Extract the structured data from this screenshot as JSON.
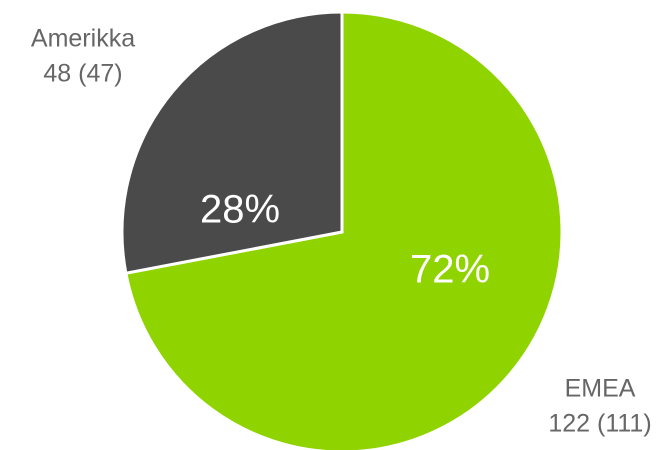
{
  "chart_data": {
    "type": "pie",
    "categories": [
      "EMEA",
      "Amerikka"
    ],
    "values": [
      72,
      28
    ],
    "value_labels": [
      "72%",
      "28%"
    ],
    "details": [
      "122 (111)",
      "48 (47)"
    ],
    "colors": [
      "#8fd400",
      "#4a4a4a"
    ]
  }
}
